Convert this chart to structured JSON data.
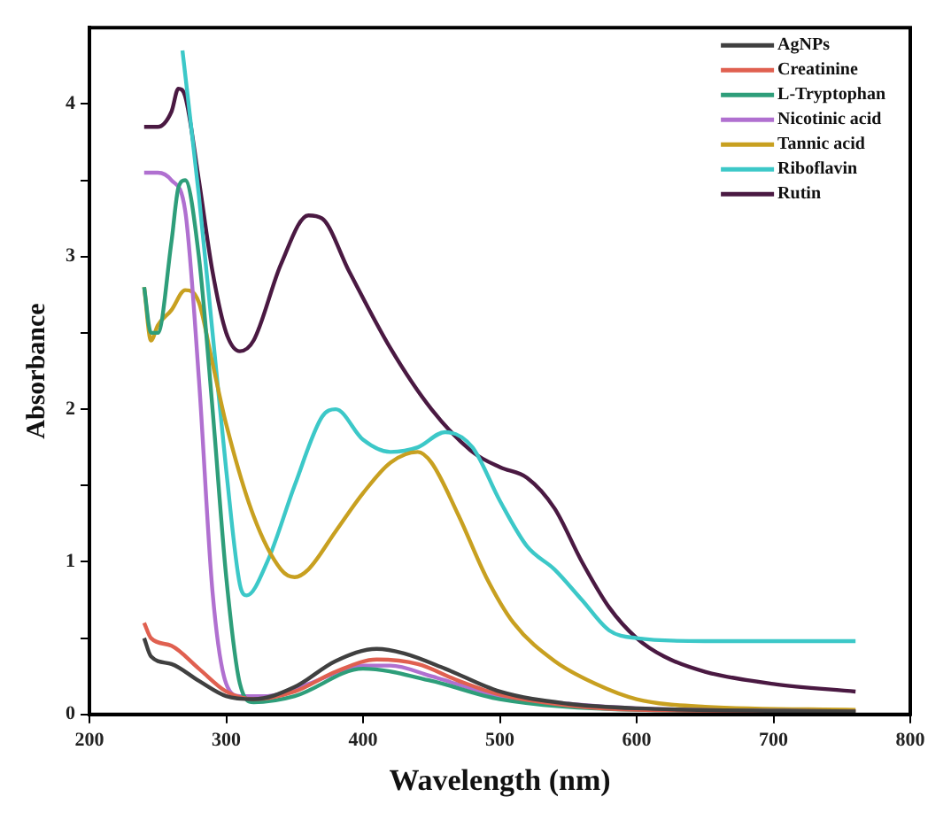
{
  "chart_data": {
    "type": "line",
    "xlabel": "Wavelength (nm)",
    "ylabel": "Absorbance",
    "xlim": [
      200,
      800
    ],
    "xticks": [
      200,
      300,
      400,
      500,
      600,
      700,
      800
    ],
    "ylim": [
      0,
      4.5
    ],
    "yticks": [
      0,
      {
        "value": 0.5,
        "label": null
      },
      1,
      {
        "value": 1.5,
        "label": null
      },
      2,
      {
        "value": 2.5,
        "label": null
      },
      3,
      {
        "value": 3.5,
        "label": null
      },
      4
    ],
    "grid": false,
    "legend": "top right",
    "marker": "none",
    "line_style": "solid",
    "series": [
      {
        "name": "AgNPs",
        "color": "#404040",
        "x": [
          240,
          245,
          260,
          280,
          300,
          320,
          350,
          380,
          410,
          430,
          460,
          500,
          550,
          600,
          760
        ],
        "values": [
          0.5,
          0.38,
          0.33,
          0.22,
          0.12,
          0.1,
          0.18,
          0.35,
          0.43,
          0.4,
          0.3,
          0.15,
          0.07,
          0.04,
          0.02
        ]
      },
      {
        "name": "Creatinine",
        "color": "#e06050",
        "x": [
          240,
          245,
          260,
          280,
          300,
          320,
          350,
          380,
          410,
          440,
          470,
          500,
          550,
          600,
          760
        ],
        "values": [
          0.6,
          0.5,
          0.45,
          0.3,
          0.15,
          0.1,
          0.15,
          0.28,
          0.36,
          0.33,
          0.22,
          0.13,
          0.06,
          0.03,
          0.02
        ]
      },
      {
        "name": "L-Tryptophan",
        "color": "#2e9e7a",
        "x": [
          240,
          245,
          250,
          260,
          265,
          270,
          280,
          290,
          300,
          310,
          320,
          350,
          400,
          450,
          500,
          600,
          760
        ],
        "values": [
          2.8,
          2.5,
          2.5,
          3.1,
          3.45,
          3.5,
          3.0,
          2.0,
          0.9,
          0.2,
          0.08,
          0.12,
          0.3,
          0.22,
          0.1,
          0.03,
          0.02
        ]
      },
      {
        "name": "Nicotinic acid",
        "color": "#b070d0",
        "x": [
          240,
          250,
          260,
          270,
          280,
          290,
          300,
          310,
          330,
          360,
          400,
          420,
          450,
          500,
          550,
          600,
          760
        ],
        "values": [
          3.55,
          3.55,
          3.5,
          3.3,
          2.2,
          0.8,
          0.2,
          0.12,
          0.12,
          0.2,
          0.32,
          0.32,
          0.25,
          0.12,
          0.07,
          0.04,
          0.02
        ]
      },
      {
        "name": "Tannic acid",
        "color": "#c8a020",
        "x": [
          240,
          245,
          250,
          260,
          270,
          280,
          290,
          300,
          320,
          340,
          350,
          360,
          380,
          400,
          420,
          440,
          450,
          470,
          490,
          510,
          540,
          570,
          600,
          650,
          760
        ],
        "values": [
          2.8,
          2.45,
          2.55,
          2.65,
          2.78,
          2.7,
          2.3,
          1.9,
          1.3,
          0.95,
          0.9,
          0.95,
          1.2,
          1.45,
          1.65,
          1.72,
          1.65,
          1.3,
          0.9,
          0.6,
          0.35,
          0.2,
          0.1,
          0.05,
          0.03
        ]
      },
      {
        "name": "Riboflavin",
        "color": "#3cc8c8",
        "x": [
          268,
          280,
          290,
          300,
          310,
          315,
          330,
          350,
          370,
          380,
          400,
          420,
          440,
          460,
          480,
          500,
          520,
          540,
          560,
          580,
          600,
          650,
          760
        ],
        "values": [
          4.35,
          3.4,
          2.5,
          1.6,
          0.85,
          0.78,
          1.0,
          1.5,
          1.95,
          2.0,
          1.8,
          1.72,
          1.75,
          1.85,
          1.75,
          1.4,
          1.1,
          0.95,
          0.75,
          0.55,
          0.5,
          0.48,
          0.48
        ]
      },
      {
        "name": "Rutin",
        "color": "#4a1942",
        "x": [
          240,
          250,
          260,
          265,
          270,
          280,
          290,
          300,
          310,
          320,
          340,
          360,
          370,
          390,
          420,
          450,
          480,
          500,
          520,
          540,
          560,
          580,
          600,
          620,
          650,
          700,
          760
        ],
        "values": [
          3.85,
          3.85,
          3.95,
          4.1,
          4.05,
          3.5,
          2.9,
          2.5,
          2.38,
          2.45,
          2.95,
          3.27,
          3.25,
          2.9,
          2.4,
          2.0,
          1.72,
          1.62,
          1.55,
          1.35,
          1.0,
          0.7,
          0.5,
          0.38,
          0.28,
          0.2,
          0.15
        ]
      }
    ]
  }
}
